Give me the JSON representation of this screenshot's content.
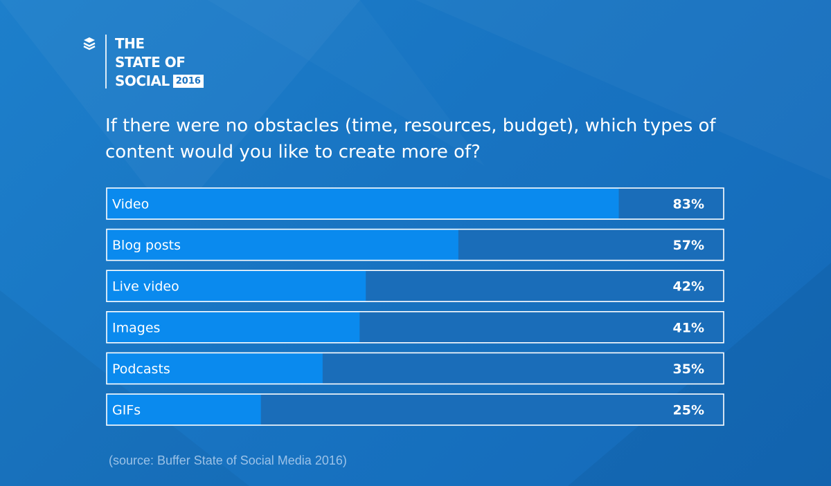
{
  "brand": {
    "line1": "THE",
    "line2": "STATE OF",
    "line3": "SOCIAL",
    "year": "2016",
    "icon": "buffer-stack-icon"
  },
  "question": "If there were no obstacles (time, resources, budget), which types of content would you like to create more of?",
  "source": "(source: Buffer State of Social Media 2016)",
  "colors": {
    "background": "#1874c2",
    "bar_fill": "#0a8aee",
    "bar_track": "#1a6db9",
    "border": "#ffffff",
    "text": "#ffffff"
  },
  "chart_data": {
    "type": "bar",
    "orientation": "horizontal",
    "title": "If there were no obstacles (time, resources, budget), which types of content would you like to create more of?",
    "categories": [
      "Video",
      "Blog posts",
      "Live video",
      "Images",
      "Podcasts",
      "GIFs"
    ],
    "values": [
      83,
      57,
      42,
      41,
      35,
      25
    ],
    "value_labels": [
      "83%",
      "57%",
      "42%",
      "41%",
      "35%",
      "25%"
    ],
    "unit": "%",
    "xlim": [
      0,
      100
    ],
    "xlabel": "",
    "ylabel": "",
    "grid": false,
    "legend": "none"
  }
}
